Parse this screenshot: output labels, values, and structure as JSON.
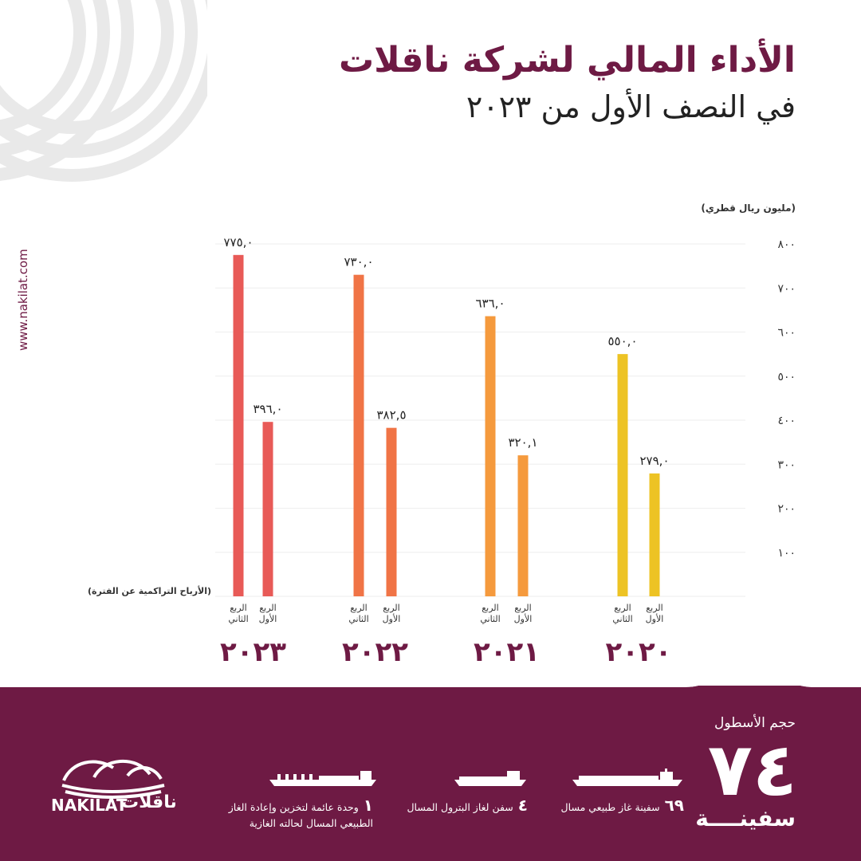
{
  "header": {
    "title": "الأداء المالي لشركة ناقلات",
    "subtitle": "في النصف الأول من ٢٠٢٣"
  },
  "side": {
    "website": "www.nakilat.com"
  },
  "colors": {
    "brand": "#6e1a44",
    "years": {
      "2023": "#e85a57",
      "2022": "#f07446",
      "2021": "#f59a3d",
      "2020": "#edc324"
    }
  },
  "chart_data": {
    "type": "bar",
    "unit_label": "(مليون ريال قطري)",
    "note": "(الأرباح التراكمية عن الفترة)",
    "ylim": [
      0,
      800
    ],
    "yticks": [
      "١٠٠",
      "٢٠٠",
      "٣٠٠",
      "٤٠٠",
      "٥٠٠",
      "٦٠٠",
      "٧٠٠",
      "٨٠٠"
    ],
    "grid": true,
    "groups": [
      {
        "year": "٢٠٢٣",
        "bars": [
          {
            "label": "الربع الثاني",
            "value": 775.0,
            "value_label": "٧٧٥,٠"
          },
          {
            "label": "الربع الأول",
            "value": 396.0,
            "value_label": "٣٩٦,٠"
          }
        ]
      },
      {
        "year": "٢٠٢٢",
        "bars": [
          {
            "label": "الربع الثاني",
            "value": 730.0,
            "value_label": "٧٣٠,٠"
          },
          {
            "label": "الربع الأول",
            "value": 382.5,
            "value_label": "٣٨٢,٥"
          }
        ]
      },
      {
        "year": "٢٠٢١",
        "bars": [
          {
            "label": "الربع الثاني",
            "value": 636.0,
            "value_label": "٦٣٦,٠"
          },
          {
            "label": "الربع الأول",
            "value": 320.1,
            "value_label": "٣٢٠,١"
          }
        ]
      },
      {
        "year": "٢٠٢٠",
        "bars": [
          {
            "label": "الربع الثاني",
            "value": 550.0,
            "value_label": "٥٥٠,٠"
          },
          {
            "label": "الربع الأول",
            "value": 279.0,
            "value_label": "٢٧٩,٠"
          }
        ]
      }
    ]
  },
  "fleet": {
    "title": "حجم الأسطول",
    "count": "٧٤",
    "count_unit": "سفينــــة",
    "vessels": [
      {
        "count": "٦٩",
        "label": "سفينة غاز طبيعي مسال",
        "icon": "lng-carrier-icon"
      },
      {
        "count": "٤",
        "label": "سفن لغاز البترول المسال",
        "icon": "lpg-carrier-icon"
      },
      {
        "count": "١",
        "label": "وحدة عائمة لتخزين وإعادة الغاز الطبيعي المسال لحالته الغازية",
        "icon": "fsru-icon"
      }
    ]
  },
  "logo": {
    "latin": "NAKILAT",
    "arabic": "ناقلات"
  }
}
